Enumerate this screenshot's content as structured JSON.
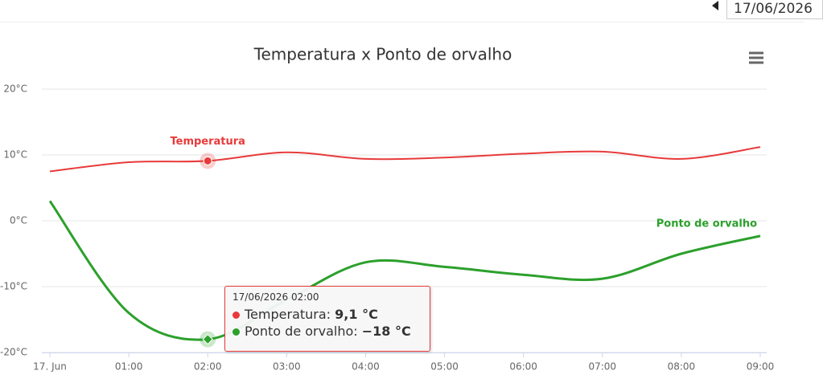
{
  "date": "17/06/2026",
  "chart_data": {
    "type": "line",
    "title": "Temperatura x Ponto de orvalho",
    "categories": [
      "17. Jun",
      "01:00",
      "02:00",
      "03:00",
      "04:00",
      "05:00",
      "06:00",
      "07:00",
      "08:00",
      "09:00"
    ],
    "series": [
      {
        "name": "Temperatura",
        "color": "#e83a3a",
        "values": [
          7.5,
          8.9,
          9.1,
          10.4,
          9.4,
          9.6,
          10.2,
          10.5,
          9.4,
          11.2
        ]
      },
      {
        "name": "Ponto de orvalho",
        "color": "#2ca02c",
        "values": [
          3.0,
          -14,
          -18,
          -12,
          -6.3,
          -7,
          -8.2,
          -8.8,
          -5,
          -2.3
        ]
      }
    ],
    "ylim": [
      -20,
      20
    ],
    "yticks": [
      {
        "value": -20,
        "label": "-20°C"
      },
      {
        "value": -10,
        "label": "-10°C"
      },
      {
        "value": 0,
        "label": "0°C"
      },
      {
        "value": 10,
        "label": "10°C"
      },
      {
        "value": 20,
        "label": "20°C"
      }
    ],
    "grid": true,
    "tooltip": {
      "title": "17/06/2026 02:00",
      "rows": [
        {
          "label": "Temperatura:",
          "value": "9,1 °C"
        },
        {
          "label": "Ponto de orvalho:",
          "value": "−18 °C"
        }
      ]
    }
  }
}
